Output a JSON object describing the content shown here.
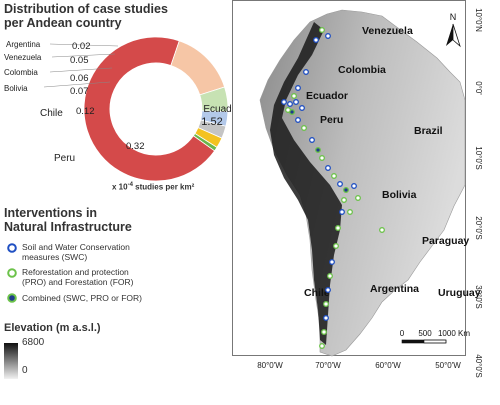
{
  "donut": {
    "title_line1": "Distribution of case studies",
    "title_line2": "per Andean country",
    "units_prefix": "x 10",
    "units_exp": "-4",
    "units_suffix": " studies per km²",
    "slices": [
      {
        "country": "Ecuador",
        "value": 1.52,
        "color": "#d44a4a"
      },
      {
        "country": "Peru",
        "value": 0.32,
        "color": "#f6c6a6"
      },
      {
        "country": "Chile",
        "value": 0.12,
        "color": "#c7e2b3"
      },
      {
        "country": "Bolivia",
        "value": 0.07,
        "color": "#b3c9ea"
      },
      {
        "country": "Colombia",
        "value": 0.06,
        "color": "#c4c4c4"
      },
      {
        "country": "Venezuela",
        "value": 0.05,
        "color": "#f3c21f"
      },
      {
        "country": "Argentina",
        "value": 0.02,
        "color": "#6bb64a"
      }
    ]
  },
  "interventions": {
    "title_line1": "Interventions in",
    "title_line2": "Natural Infrastructure",
    "items": [
      {
        "line1": "Soil and Water Conservation",
        "line2": "measures (SWC)",
        "fill": "#ffffff",
        "stroke": "#1f4fc2"
      },
      {
        "line1": "Reforestation and protection",
        "line2": "(PRO) and Forestation (FOR)",
        "fill": "#ffffff",
        "stroke": "#6cc24a"
      },
      {
        "line1": "Combined (SWC, PRO or FOR)",
        "line2": "",
        "fill": "#1f3c8c",
        "stroke": "#6cc24a"
      }
    ]
  },
  "elevation": {
    "title": "Elevation (m a.s.l.)",
    "max": "6800",
    "min": "0"
  },
  "map": {
    "countries": [
      "Venezuela",
      "Colombia",
      "Ecuador",
      "Peru",
      "Brazil",
      "Bolivia",
      "Paraguay",
      "Argentina",
      "Chile",
      "Uruguay"
    ],
    "lat_labels": [
      "10°0'N",
      "0°0'",
      "10°0'S",
      "20°0'S",
      "30°0'S",
      "40°0'S"
    ],
    "lon_labels": [
      "80°0'W",
      "70°0'W",
      "60°0'W",
      "50°0'W"
    ],
    "north": "N",
    "scale_labels": [
      "0",
      "500",
      "1000 Km"
    ]
  }
}
